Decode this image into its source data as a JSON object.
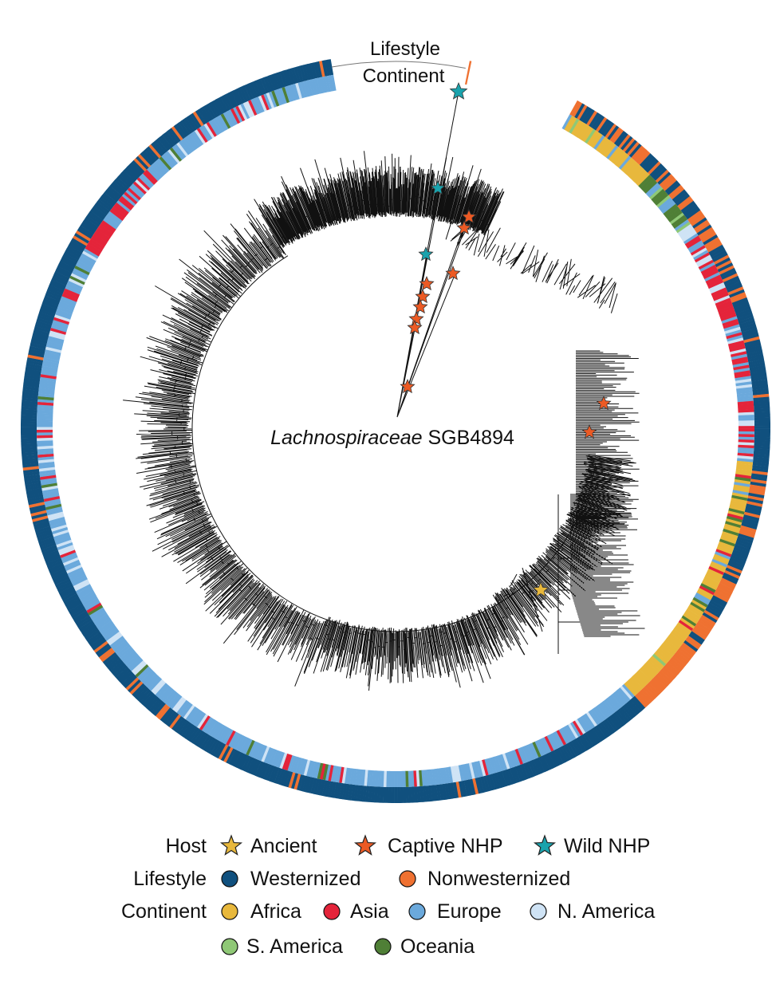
{
  "figure": {
    "center_title": {
      "italic": "Lachnospiraceae",
      "rest": " SGB4894"
    },
    "ring_labels": {
      "outer": "Lifestyle",
      "inner": "Continent"
    }
  },
  "colors": {
    "westernized": "#10507e",
    "nonwesternized": "#ef7131",
    "africa": "#e8b83c",
    "asia": "#e4243a",
    "europe": "#6ba9dc",
    "n_america": "#cfe3f5",
    "s_america": "#8fc876",
    "oceania": "#4f7f36",
    "host_ancient": "#e8b83c",
    "host_captive": "#ec5a24",
    "host_wild": "#1aa3ad",
    "branch": "#111111"
  },
  "legend": {
    "host": {
      "label": "Host",
      "items": [
        {
          "label": "Ancient",
          "color": "#e8b83c",
          "shape": "star-icon"
        },
        {
          "label": "Captive NHP",
          "color": "#ec5a24",
          "shape": "star-icon"
        },
        {
          "label": "Wild NHP",
          "color": "#1aa3ad",
          "shape": "star-icon"
        }
      ]
    },
    "lifestyle": {
      "label": "Lifestyle",
      "items": [
        {
          "label": "Westernized",
          "color": "#10507e",
          "shape": "circle-icon"
        },
        {
          "label": "Nonwesternized",
          "color": "#ef7131",
          "shape": "circle-icon"
        }
      ]
    },
    "continent": {
      "label": "Continent",
      "items": [
        {
          "label": "Africa",
          "color": "#e8b83c",
          "shape": "circle-icon"
        },
        {
          "label": "Asia",
          "color": "#e4243a",
          "shape": "circle-icon"
        },
        {
          "label": "Europe",
          "color": "#6ba9dc",
          "shape": "circle-icon"
        },
        {
          "label": "N. America",
          "color": "#cfe3f5",
          "shape": "circle-icon"
        },
        {
          "label": "S. America",
          "color": "#8fc876",
          "shape": "circle-icon"
        },
        {
          "label": "Oceania",
          "color": "#4f7f36",
          "shape": "circle-icon"
        }
      ]
    }
  }
}
